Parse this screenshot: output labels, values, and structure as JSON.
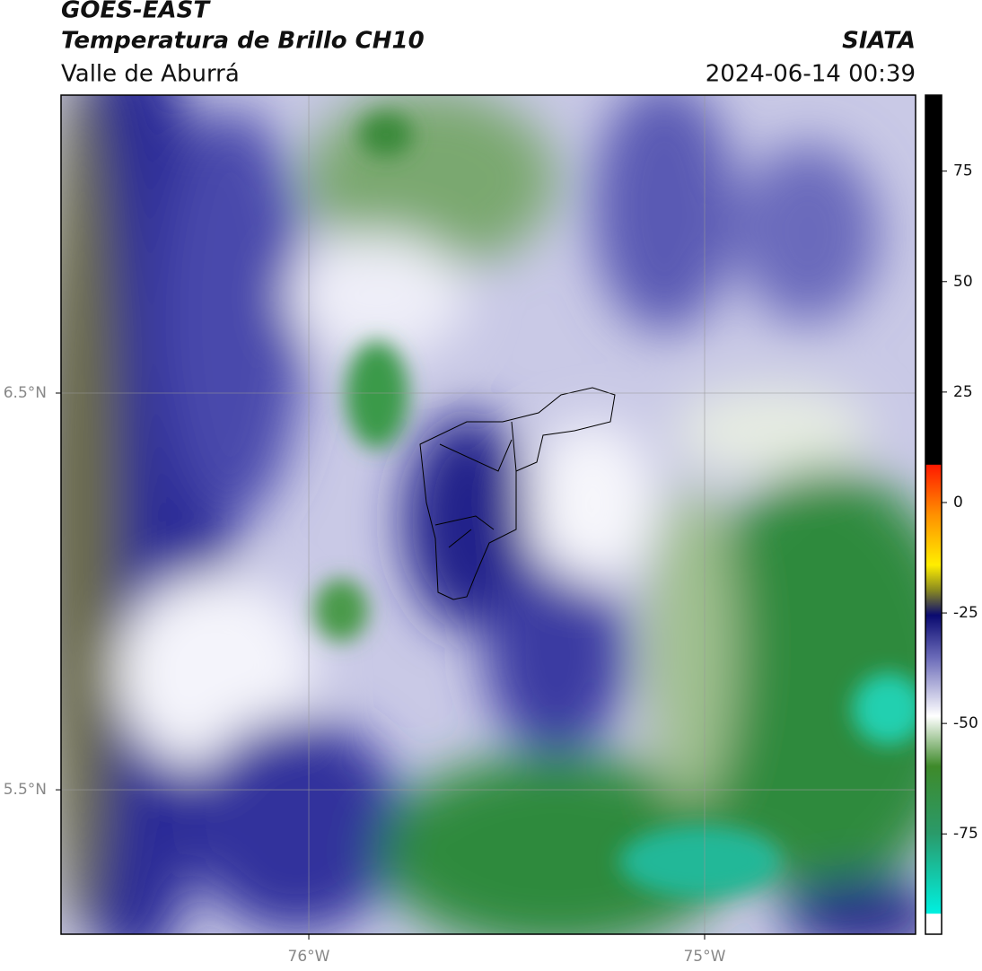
{
  "header": {
    "title": "GOES-EAST",
    "subtitle": "Temperatura de Brillo CH10",
    "region": "Valle de Aburrá",
    "source": "SIATA",
    "timestamp": "2024-06-14 00:39"
  },
  "chart_data": {
    "type": "map",
    "xlim": [
      -76.626,
      -74.467
    ],
    "ylim": [
      5.136,
      7.251
    ],
    "xticks": [
      {
        "value": -76,
        "label": "76°W"
      },
      {
        "value": -75,
        "label": "75°W"
      }
    ],
    "yticks": [
      {
        "value": 6.5,
        "label": "6.5°N"
      },
      {
        "value": 5.5,
        "label": "5.5°N"
      }
    ],
    "grid": true,
    "colorbar": {
      "lim": [
        -97.7,
        92.2
      ],
      "ticks": [
        75,
        50,
        25,
        0,
        -25,
        -50,
        -75
      ]
    }
  }
}
